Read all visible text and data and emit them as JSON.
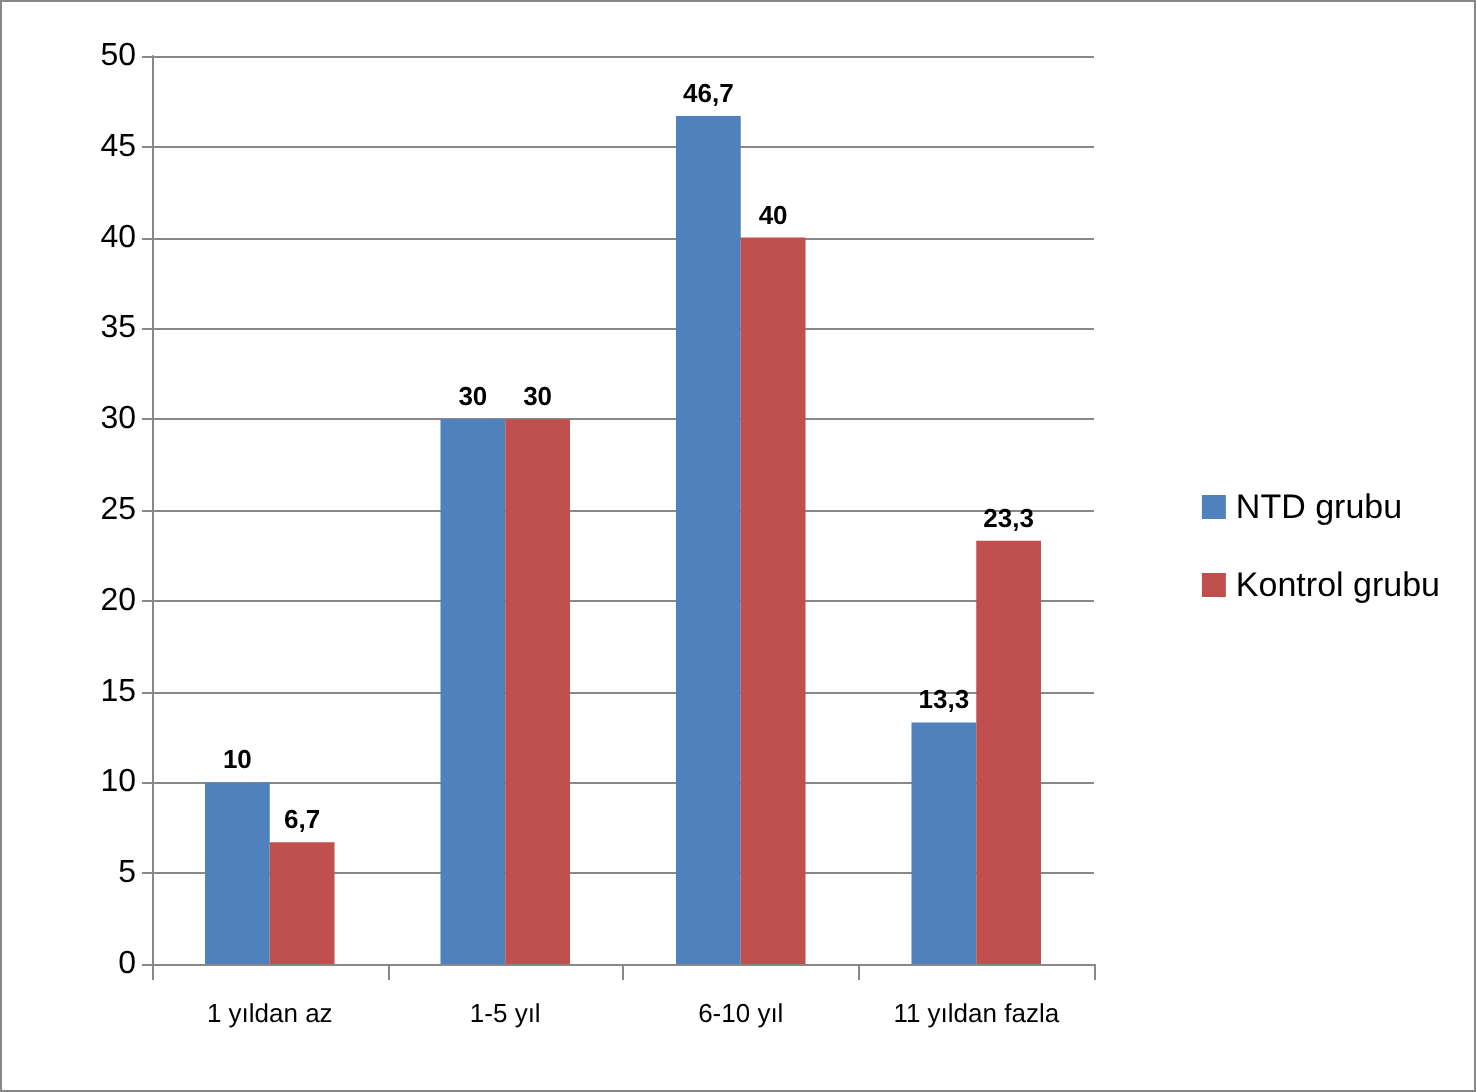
{
  "chart_data": {
    "type": "bar",
    "categories": [
      "1 yıldan az",
      "1-5 yıl",
      "6-10 yıl",
      "11 yıldan fazla"
    ],
    "series": [
      {
        "name": "NTD grubu",
        "color": "#4f81bd",
        "values": [
          10,
          30,
          46.7,
          13.3
        ],
        "value_labels": [
          "10",
          "30",
          "46,7",
          "13,3"
        ]
      },
      {
        "name": "Kontrol grubu",
        "color": "#c0504d",
        "values": [
          6.7,
          30,
          40,
          23.3
        ],
        "value_labels": [
          "6,7",
          "30",
          "40",
          "23,3"
        ]
      }
    ],
    "ylim": [
      0,
      50
    ],
    "yticks": [
      0,
      5,
      10,
      15,
      20,
      25,
      30,
      35,
      40,
      45,
      50
    ],
    "grid": "y",
    "legend": "right"
  }
}
